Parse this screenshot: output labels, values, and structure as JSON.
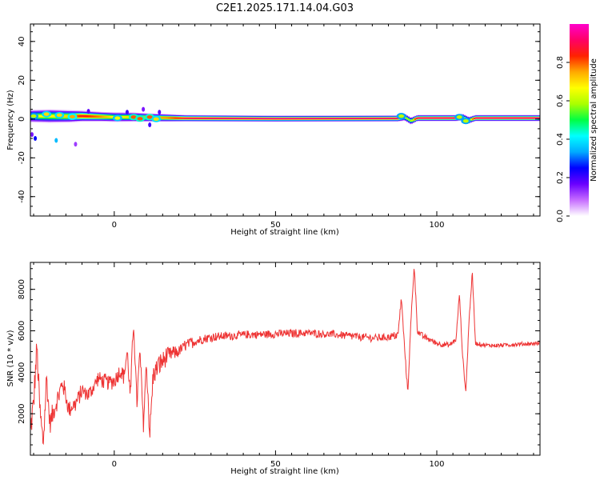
{
  "figure": {
    "title": "C2E1.2025.171.14.04.G03"
  },
  "chart_data": [
    {
      "type": "heatmap",
      "title": "C2E1.2025.171.14.04.G03",
      "xlabel": "Height of straight line (km)",
      "ylabel": "Frequency (Hz)",
      "xlim": [
        -26,
        132
      ],
      "ylim": [
        -50,
        49
      ],
      "xticks": [
        0,
        50,
        100
      ],
      "yticks": [
        -40,
        -20,
        0,
        20,
        40
      ],
      "colorbar": {
        "label": "Normalized spectral amplitude",
        "range": [
          0,
          1
        ],
        "ticks": [
          "0.0",
          "0.2",
          "0.4",
          "0.6",
          "0.8"
        ],
        "colors": [
          "#ffffff",
          "#c66cff",
          "#6a00ff",
          "#0000ff",
          "#00aaff",
          "#00ffff",
          "#00ff44",
          "#aaff00",
          "#ffff00",
          "#ffaa00",
          "#ff2200",
          "#ff0066",
          "#ff00cc"
        ]
      },
      "band": [
        {
          "x": -26,
          "f": 1.5,
          "half_width": 3.2,
          "amp": 0.62
        },
        {
          "x": -20,
          "f": 1.5,
          "half_width": 3.5,
          "amp": 0.65
        },
        {
          "x": -14,
          "f": 1.4,
          "half_width": 3.2,
          "amp": 0.7
        },
        {
          "x": -10,
          "f": 1.5,
          "half_width": 2.8,
          "amp": 0.85
        },
        {
          "x": -4,
          "f": 1.2,
          "half_width": 2.5,
          "amp": 0.75
        },
        {
          "x": 0,
          "f": 1.0,
          "half_width": 2.5,
          "amp": 0.65
        },
        {
          "x": 6,
          "f": 1.0,
          "half_width": 2.4,
          "amp": 0.7
        },
        {
          "x": 10,
          "f": 0.8,
          "half_width": 2.2,
          "amp": 0.72
        },
        {
          "x": 16,
          "f": 0.6,
          "half_width": 2.0,
          "amp": 0.75
        },
        {
          "x": 22,
          "f": 0.4,
          "half_width": 1.7,
          "amp": 0.9
        },
        {
          "x": 50,
          "f": 0.2,
          "half_width": 1.6,
          "amp": 0.95
        },
        {
          "x": 88,
          "f": 0.3,
          "half_width": 1.6,
          "amp": 0.92
        },
        {
          "x": 90,
          "f": 1.0,
          "half_width": 1.9,
          "amp": 0.6
        },
        {
          "x": 92,
          "f": -1.0,
          "half_width": 1.9,
          "amp": 0.55
        },
        {
          "x": 94,
          "f": 0.5,
          "half_width": 1.6,
          "amp": 0.95
        },
        {
          "x": 106,
          "f": 0.5,
          "half_width": 1.6,
          "amp": 0.95
        },
        {
          "x": 108,
          "f": 1.0,
          "half_width": 1.8,
          "amp": 0.6
        },
        {
          "x": 110,
          "f": -0.6,
          "half_width": 1.8,
          "amp": 0.55
        },
        {
          "x": 112,
          "f": 0.5,
          "half_width": 1.6,
          "amp": 0.95
        },
        {
          "x": 132,
          "f": 0.5,
          "half_width": 1.6,
          "amp": 0.95
        }
      ],
      "blobs": [
        {
          "x": -25,
          "f": 1.5,
          "amp": 0.6
        },
        {
          "x": -21,
          "f": 2.5,
          "amp": 0.7
        },
        {
          "x": -17,
          "f": 2.0,
          "amp": 0.7
        },
        {
          "x": -13,
          "f": 1.2,
          "amp": 0.75
        },
        {
          "x": 1,
          "f": 0.5,
          "amp": 0.65
        },
        {
          "x": 6,
          "f": 1.0,
          "amp": 0.8
        },
        {
          "x": 8,
          "f": 0.2,
          "amp": 0.8
        },
        {
          "x": 11,
          "f": 1.0,
          "amp": 0.8
        },
        {
          "x": 13,
          "f": 0.0,
          "amp": 0.7
        },
        {
          "x": 89,
          "f": 1.5,
          "amp": 0.6
        },
        {
          "x": 107,
          "f": 1.0,
          "amp": 0.6
        },
        {
          "x": 109,
          "f": -1.0,
          "amp": 0.6
        }
      ],
      "specks": [
        {
          "x": -24.5,
          "f": -10,
          "amp": 0.25
        },
        {
          "x": -25.5,
          "f": -8,
          "amp": 0.15
        },
        {
          "x": -18,
          "f": -11,
          "amp": 0.35
        },
        {
          "x": -12,
          "f": -13,
          "amp": 0.12
        },
        {
          "x": -8,
          "f": 4,
          "amp": 0.18
        },
        {
          "x": 4,
          "f": 3.5,
          "amp": 0.2
        },
        {
          "x": 9,
          "f": 5,
          "amp": 0.15
        },
        {
          "x": 11,
          "f": -3,
          "amp": 0.2
        },
        {
          "x": 14,
          "f": 3.5,
          "amp": 0.18
        }
      ]
    },
    {
      "type": "line",
      "xlabel": "Height of straight line (km)",
      "ylabel": "SNR (10 * v/v)",
      "xlim": [
        -26,
        132
      ],
      "ylim": [
        0,
        9300
      ],
      "xticks": [
        0,
        50,
        100
      ],
      "yticks": [
        2000,
        4000,
        6000,
        8000
      ],
      "color": "#ee3333",
      "noise": [
        {
          "x": -26,
          "amp": 900
        },
        {
          "x": -18,
          "amp": 600
        },
        {
          "x": -10,
          "amp": 450
        },
        {
          "x": 0,
          "amp": 450
        },
        {
          "x": 14,
          "amp": 700
        },
        {
          "x": 20,
          "amp": 350
        },
        {
          "x": 30,
          "amp": 250
        },
        {
          "x": 90,
          "amp": 220
        },
        {
          "x": 112,
          "amp": 120
        },
        {
          "x": 132,
          "amp": 120
        }
      ],
      "x": [
        -26,
        -25,
        -24,
        -23,
        -22,
        -21,
        -20,
        -18,
        -16,
        -14,
        -12,
        -10,
        -8,
        -5,
        -2,
        0,
        2,
        3,
        4,
        5,
        6,
        7,
        8,
        9,
        10,
        11,
        12,
        14,
        16,
        18,
        20,
        22,
        25,
        30,
        35,
        40,
        50,
        60,
        70,
        80,
        85,
        88,
        89,
        90,
        91,
        92,
        93,
        94,
        95,
        100,
        104,
        106,
        107,
        108,
        109,
        110,
        111,
        112,
        115,
        120,
        125,
        132
      ],
      "y": [
        1000,
        2500,
        5200,
        2000,
        600,
        3800,
        1500,
        2500,
        3500,
        2200,
        2500,
        3100,
        2900,
        3700,
        3500,
        3600,
        4100,
        3800,
        5000,
        2800,
        6500,
        2500,
        5000,
        1500,
        4500,
        900,
        3800,
        4400,
        4700,
        4900,
        5000,
        5300,
        5500,
        5700,
        5750,
        5800,
        5850,
        5900,
        5800,
        5650,
        5700,
        5800,
        7600,
        5200,
        3000,
        6500,
        9200,
        6000,
        5800,
        5400,
        5300,
        5600,
        7800,
        4800,
        3000,
        6500,
        8800,
        5400,
        5300,
        5300,
        5350,
        5400
      ]
    }
  ]
}
